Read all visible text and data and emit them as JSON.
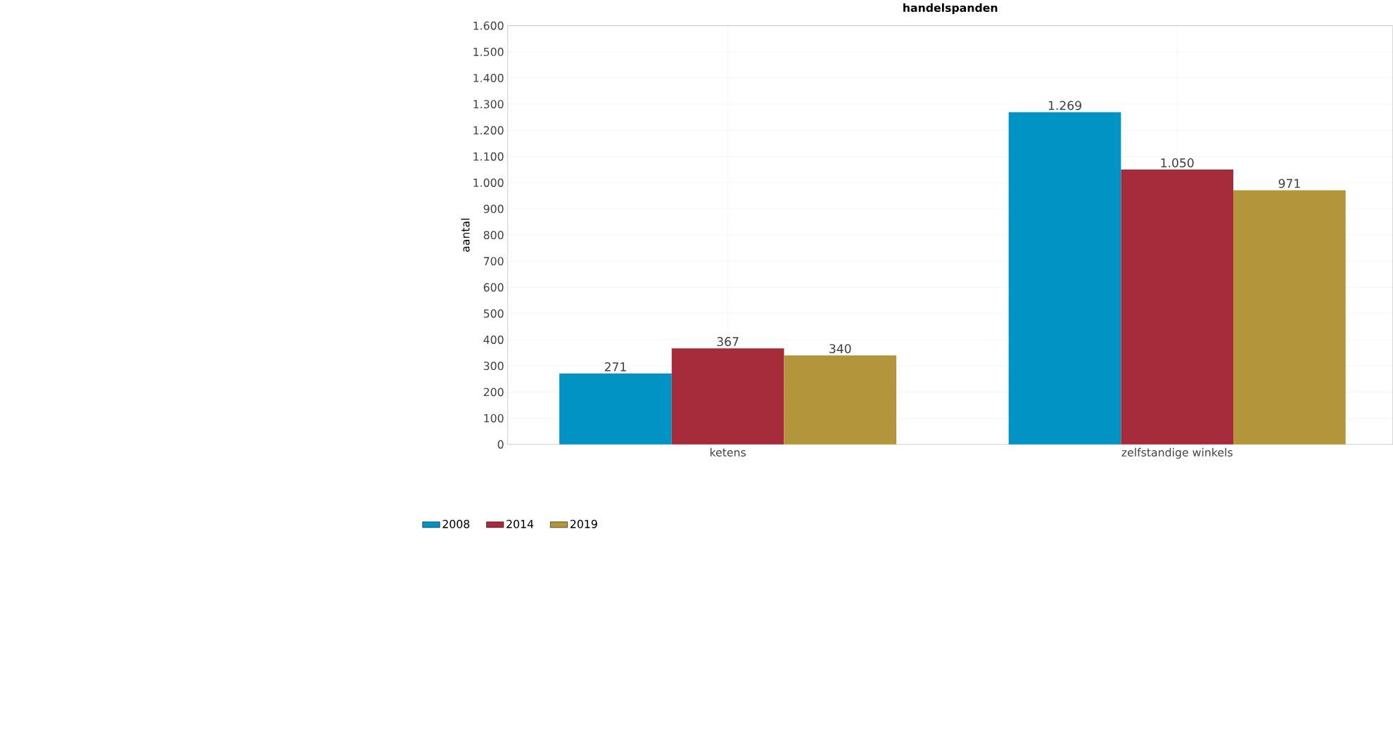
{
  "chart_data": {
    "type": "bar",
    "title": "handelspanden",
    "ylabel": "aantal",
    "categories": [
      "ketens",
      "zelfstandige winkels"
    ],
    "series": [
      {
        "name": "2008",
        "color": "#0093c4",
        "values": [
          271,
          1269
        ],
        "value_labels": [
          "271",
          "1.269"
        ]
      },
      {
        "name": "2014",
        "color": "#a62c3b",
        "values": [
          367,
          1050
        ],
        "value_labels": [
          "367",
          "1.050"
        ]
      },
      {
        "name": "2019",
        "color": "#b3963b",
        "values": [
          340,
          971
        ],
        "value_labels": [
          "340",
          "971"
        ]
      }
    ],
    "ylim": [
      0,
      1600
    ],
    "yticks": [
      0,
      100,
      200,
      300,
      400,
      500,
      600,
      700,
      800,
      900,
      {
        "value": 1000,
        "label": "1.000"
      },
      {
        "value": 1100,
        "label": "1.100"
      },
      {
        "value": 1200,
        "label": "1.200"
      },
      {
        "value": 1300,
        "label": "1.300"
      },
      {
        "value": 1400,
        "label": "1.400"
      },
      {
        "value": 1500,
        "label": "1.500"
      },
      {
        "value": 1600,
        "label": "1.600"
      }
    ],
    "grid": true,
    "legend": "bottom left"
  }
}
